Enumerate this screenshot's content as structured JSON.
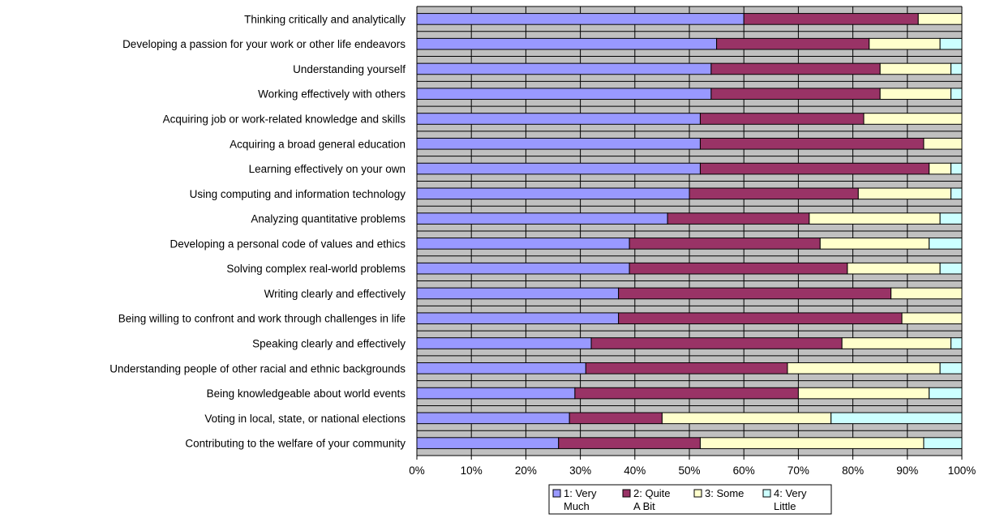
{
  "chart_data": {
    "type": "bar",
    "orientation": "horizontal",
    "stacked": true,
    "normalized": true,
    "title": "",
    "xlabel": "",
    "ylabel": "",
    "xlim": [
      0,
      100
    ],
    "x_ticks": [
      "0%",
      "10%",
      "20%",
      "30%",
      "40%",
      "50%",
      "60%",
      "70%",
      "80%",
      "90%",
      "100%"
    ],
    "grid": true,
    "legend_position": "bottom",
    "categories": [
      "Thinking critically and analytically",
      "Developing a passion for your work or other life endeavors",
      "Understanding yourself",
      "Working effectively with others",
      "Acquiring job or work-related knowledge and skills",
      "Acquiring a broad general education",
      "Learning effectively on your own",
      "Using computing and information technology",
      "Analyzing quantitative problems",
      "Developing a personal code of values and ethics",
      "Solving complex real-world problems",
      "Writing clearly and effectively",
      "Being willing to confront and work through challenges in life",
      "Speaking clearly and effectively",
      "Understanding people of other racial and ethnic backgrounds",
      "Being knowledgeable about world events",
      "Voting in local, state, or national elections",
      "Contributing to the welfare of your community"
    ],
    "series": [
      {
        "name": "1: Very Much",
        "legend_lines": [
          "1: Very",
          "Much"
        ],
        "color": "#9999ff",
        "values": [
          60,
          55,
          54,
          54,
          52,
          52,
          52,
          50,
          46,
          39,
          39,
          37,
          37,
          32,
          31,
          29,
          28,
          26
        ]
      },
      {
        "name": "2: Quite A Bit",
        "legend_lines": [
          "2: Quite",
          "A Bit"
        ],
        "color": "#993366",
        "values": [
          32,
          28,
          31,
          31,
          30,
          41,
          42,
          31,
          26,
          35,
          40,
          50,
          52,
          46,
          37,
          41,
          17,
          26
        ]
      },
      {
        "name": "3: Some",
        "legend_lines": [
          "3: Some",
          ""
        ],
        "color": "#ffffcc",
        "values": [
          8,
          13,
          13,
          13,
          18,
          7,
          4,
          17,
          24,
          20,
          17,
          13,
          11,
          20,
          28,
          24,
          31,
          41
        ]
      },
      {
        "name": "4: Very Little",
        "legend_lines": [
          "4: Very",
          "Little"
        ],
        "color": "#ccffff",
        "values": [
          0,
          4,
          2,
          2,
          0,
          0,
          2,
          2,
          4,
          6,
          4,
          0,
          0,
          2,
          4,
          6,
          24,
          7
        ]
      }
    ],
    "colors": {
      "plot_background": "#c0c0c0",
      "gridline": "#000000",
      "bar_outline": "#000000"
    }
  }
}
